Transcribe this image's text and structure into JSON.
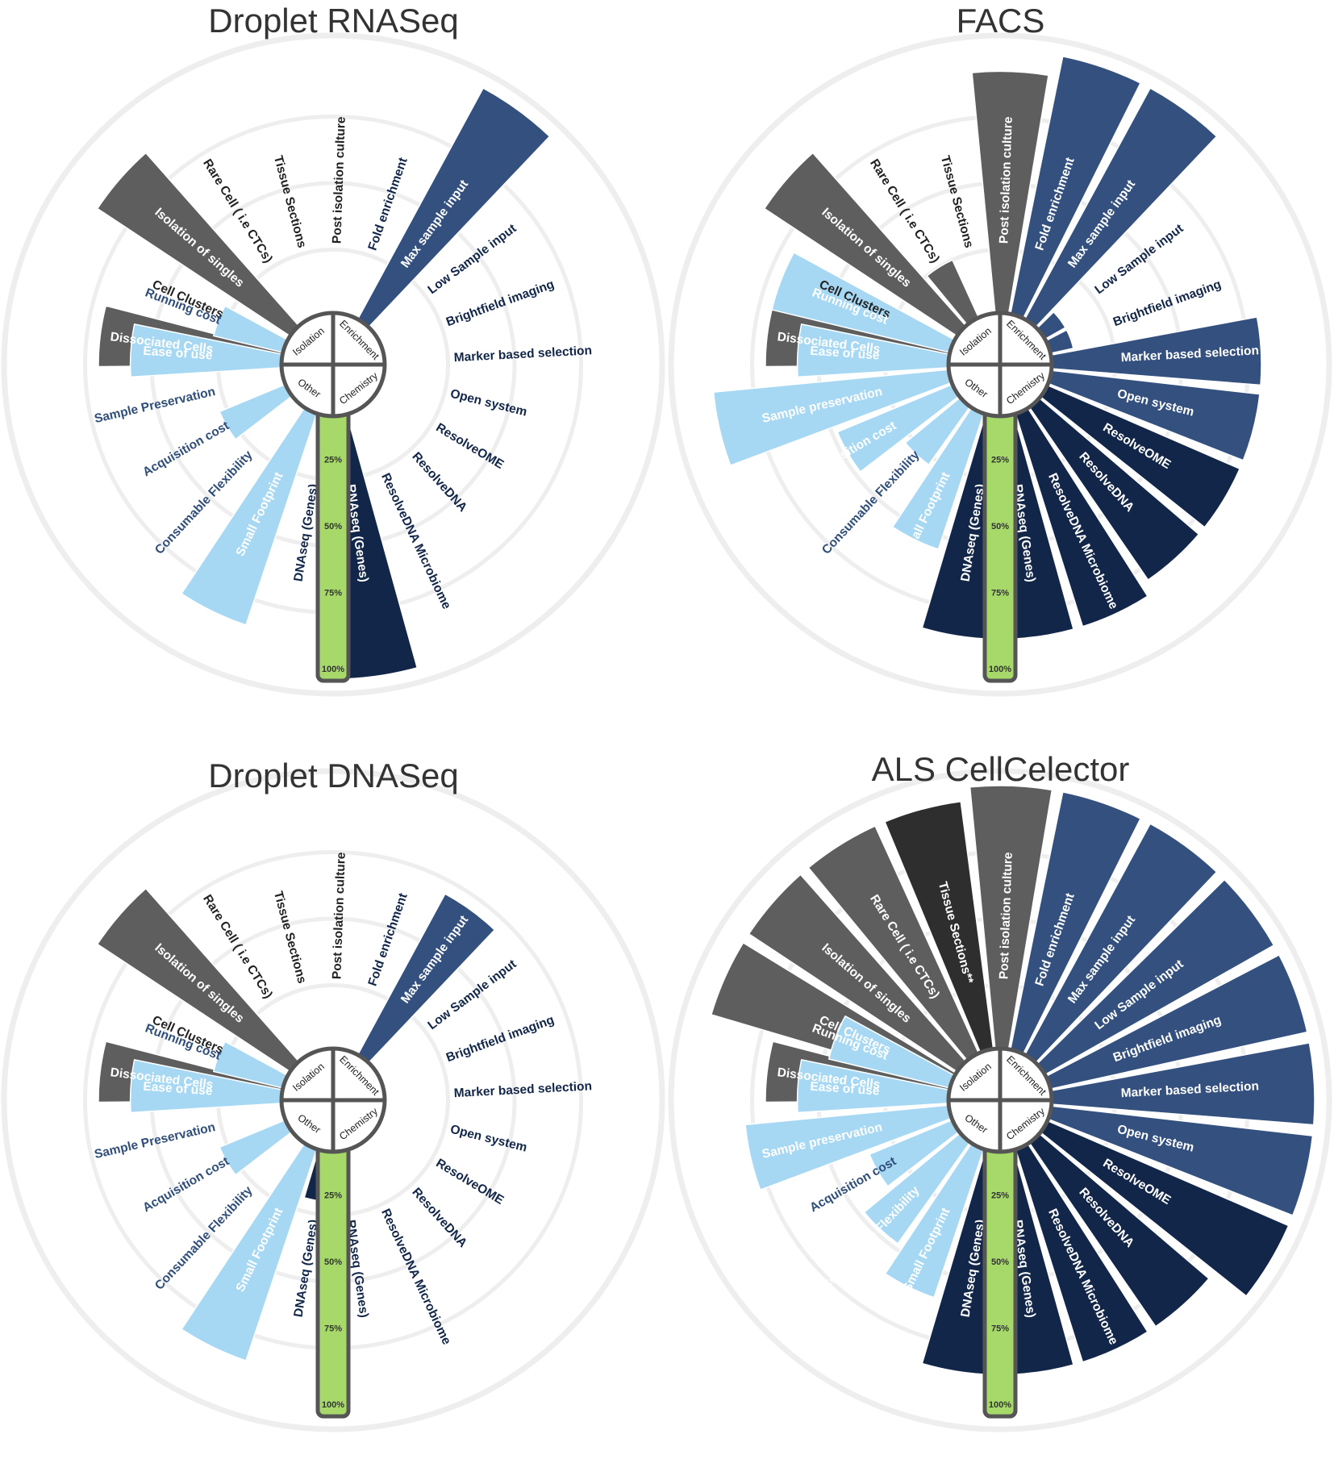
{
  "categories": [
    "Dissociated Cells",
    "Cell Clusters",
    "Isolation of singles",
    "Rare Cell ( i.e CTCs)",
    "Tissue Sections",
    "Post isolation culture",
    "Fold enrichment",
    "Max sample input",
    "Low Sample input",
    "Brightfield imaging",
    "Marker based selection",
    "Open system",
    "ResolveOME",
    "ResolveDNA",
    "ResolveDNA Microbiome",
    "RNAseq (Genes)",
    "DNAseq (Genes)",
    "Small Footprint",
    "Consumable Flexibility",
    "Acquisition cost",
    "Sample Preservation",
    "Ease of use",
    "Running cost"
  ],
  "groups": [
    "Isolation",
    "Enrichment",
    "Chemistry",
    "Other"
  ],
  "category_groups": [
    0,
    0,
    0,
    0,
    0,
    0,
    1,
    1,
    1,
    1,
    1,
    1,
    2,
    2,
    2,
    2,
    2,
    3,
    3,
    3,
    3,
    3,
    3
  ],
  "colors": {
    "Isolation": "#5e5e5e",
    "Isolation-dark": "#2e2e2e",
    "Enrichment": "#33507f",
    "Chemistry": "#12264a",
    "Other": "#a6d8f4",
    "scale": "#a6d96a",
    "outline": "#555555",
    "ring": "#eeeeee",
    "label-isolation": "#222222",
    "label-enrichment": "#12264a",
    "label-chemistry": "#12264a",
    "label-other": "#2f4e7a"
  },
  "scale_labels": [
    "25%",
    "50%",
    "75%",
    "100%"
  ],
  "chart_data": [
    {
      "type": "radial-bar",
      "title": "Droplet RNASeq",
      "rmax": 100,
      "values": [
        70,
        0,
        88,
        0,
        0,
        0,
        0,
        100,
        0,
        0,
        0,
        0,
        0,
        0,
        0,
        100,
        0,
        85,
        0,
        28,
        0,
        58,
        28
      ],
      "label_overrides": {}
    },
    {
      "type": "radial-bar",
      "title": "FACS",
      "rmax": 100,
      "values": [
        70,
        0,
        88,
        25,
        0,
        92,
        100,
        100,
        10,
        10,
        80,
        80,
        80,
        80,
        85,
        85,
        85,
        55,
        28,
        48,
        90,
        58,
        70
      ],
      "label_overrides": {
        "20": "Sample preservation"
      }
    },
    {
      "type": "radial-bar",
      "title": "Droplet DNASeq",
      "rmax": 100,
      "values": [
        70,
        0,
        88,
        0,
        0,
        0,
        0,
        70,
        0,
        0,
        0,
        0,
        0,
        0,
        0,
        0,
        20,
        85,
        0,
        28,
        0,
        58,
        28
      ],
      "label_overrides": {}
    },
    {
      "type": "radial-bar",
      "title": "ALS CellCelector",
      "rmax": 100,
      "values": [
        70,
        95,
        95,
        95,
        95,
        100,
        100,
        100,
        100,
        100,
        100,
        100,
        100,
        85,
        85,
        85,
        85,
        60,
        48,
        35,
        78,
        58,
        48
      ],
      "label_overrides": {
        "4": "Tissue Sections**",
        "20": "Sample preservation"
      },
      "highlight": {
        "4": "Isolation-dark"
      }
    }
  ]
}
